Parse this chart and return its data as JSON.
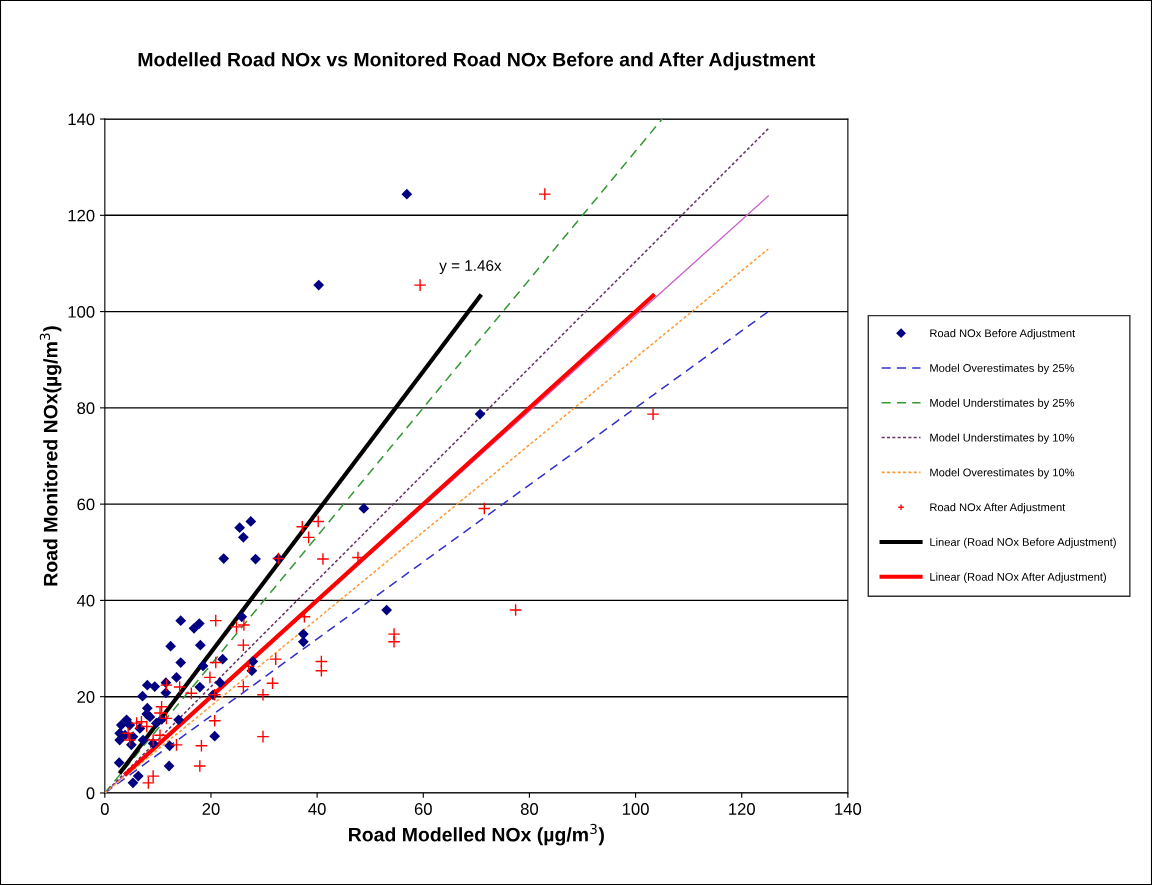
{
  "chart_data": {
    "type": "scatter",
    "title": "Modelled Road NOx vs Monitored Road NOx Before and After Adjustment",
    "xlabel": "Road Modelled NOx (µg/m$^{3}$)",
    "ylabel": "Road Monitored NOx(µg/m$^{3}$)",
    "xlim": [
      0,
      140
    ],
    "xticks": [
      0,
      20,
      40,
      60,
      80,
      100,
      120,
      140
    ],
    "ylim": [
      0,
      140
    ],
    "yticks": [
      0,
      20,
      40,
      60,
      80,
      100,
      120,
      140
    ],
    "grid": "y",
    "legend": "right",
    "annotations": [
      "y = 1.46x"
    ],
    "series": [
      {
        "name": "Road NOx Before Adjustment",
        "color": "#000080",
        "marker": "diamond",
        "x": [
          56.9,
          40.3,
          70.7,
          48.8,
          53.1,
          37.4,
          37.4,
          27.5,
          25.4,
          26.1,
          22.4,
          28.4,
          32.7,
          25.8,
          27.7,
          27.9,
          22.2,
          21.7,
          20.4,
          20.7,
          14.3,
          16.8,
          17.8,
          12.4,
          18.0,
          14.3,
          18.5,
          13.5,
          8.0,
          9.4,
          11.5,
          11.5,
          17.9,
          7.1,
          8.0,
          7.9,
          13.9,
          4.1,
          3.1,
          4.7,
          6.6,
          2.8,
          3.8,
          5.3,
          7.2,
          2.8,
          5.0,
          9.1,
          12.2,
          2.7,
          12.1,
          6.3,
          5.3,
          9.7,
          8.5,
          10.7
        ],
        "values": [
          124.4,
          105.5,
          78.7,
          59.1,
          38.0,
          33.0,
          31.4,
          56.4,
          55.1,
          53.1,
          48.7,
          48.6,
          48.7,
          36.6,
          25.4,
          27.3,
          27.8,
          22.9,
          20.4,
          11.8,
          35.8,
          34.2,
          35.2,
          30.5,
          30.7,
          27.1,
          26.4,
          24.0,
          22.4,
          22.1,
          22.9,
          20.8,
          22.0,
          20.1,
          17.6,
          16.4,
          15.2,
          15.2,
          14.1,
          14.1,
          13.4,
          12.4,
          12.0,
          11.7,
          11.0,
          11.0,
          10.0,
          10.3,
          9.8,
          6.3,
          5.6,
          3.5,
          2.1,
          14.5,
          15.8,
          15.3
        ]
      },
      {
        "name": "Model Overestimates by 25%",
        "type": "line",
        "color": "#3333cc",
        "line_style": "dashed",
        "x": [
          0,
          125
        ],
        "values": [
          0,
          100
        ]
      },
      {
        "name": "Model Understimates by 25%",
        "type": "line",
        "color": "#339933",
        "line_style": "dashed",
        "x": [
          0,
          105
        ],
        "values": [
          0,
          140
        ]
      },
      {
        "name": "Model Understimates by 10%",
        "type": "line",
        "color": "#663366",
        "line_style": "dotted",
        "x": [
          0,
          125
        ],
        "values": [
          0,
          138
        ]
      },
      {
        "name": "Model Overestimates by 10%",
        "type": "line",
        "color": "#ff9933",
        "line_style": "dotted",
        "x": [
          0,
          125
        ],
        "values": [
          0,
          113
        ]
      },
      {
        "name": "Road NOx After Adjustment",
        "color": "#ff0000",
        "marker": "cross",
        "x": [
          82.9,
          59.4,
          103.3,
          71.5,
          77.4,
          54.5,
          54.5,
          40.2,
          37.2,
          38.4,
          41.1,
          47.7,
          32.7,
          37.6,
          40.8,
          40.8,
          32.2,
          31.6,
          29.8,
          29.8,
          20.9,
          24.8,
          26.2,
          26.1,
          20.9,
          27.1,
          19.8,
          26.1,
          11.6,
          14.1,
          16.3,
          10.7,
          11.6,
          20.7,
          10.4,
          6.0,
          6.9,
          4.4,
          7.9,
          10.4,
          9.1,
          13.5,
          18.2,
          17.9,
          9.1,
          8.2,
          4.7,
          20.7
        ],
        "values": [
          124.4,
          105.5,
          78.7,
          59.1,
          38.0,
          33.0,
          31.4,
          56.4,
          55.3,
          53.1,
          48.6,
          48.9,
          48.7,
          36.6,
          27.3,
          25.4,
          27.8,
          22.8,
          20.4,
          11.7,
          35.8,
          34.5,
          34.9,
          30.7,
          27.1,
          26.3,
          24.0,
          22.1,
          22.4,
          22.0,
          20.7,
          17.9,
          15.5,
          15.0,
          16.6,
          14.5,
          14.8,
          12.4,
          13.8,
          12.0,
          11.0,
          10.0,
          9.8,
          5.6,
          3.5,
          2.1,
          11.0,
          20.4
        ]
      },
      {
        "name": "Linear (Road NOx Before Adjustment)",
        "type": "line",
        "color": "#000000",
        "line_style": "solid",
        "x": [
          3,
          70.7
        ],
        "values": [
          4.4,
          103.2
        ]
      },
      {
        "name": "Linear (Road NOx After Adjustment)",
        "type": "line",
        "color": "#ff0000",
        "line_style": "solid",
        "x": [
          4,
          103.3
        ],
        "values": [
          4,
          103.3
        ]
      },
      {
        "type": "line",
        "color": "#cc66cc",
        "line_style": "solid",
        "x": [
          0,
          125
        ],
        "values": [
          0,
          124
        ]
      }
    ]
  }
}
